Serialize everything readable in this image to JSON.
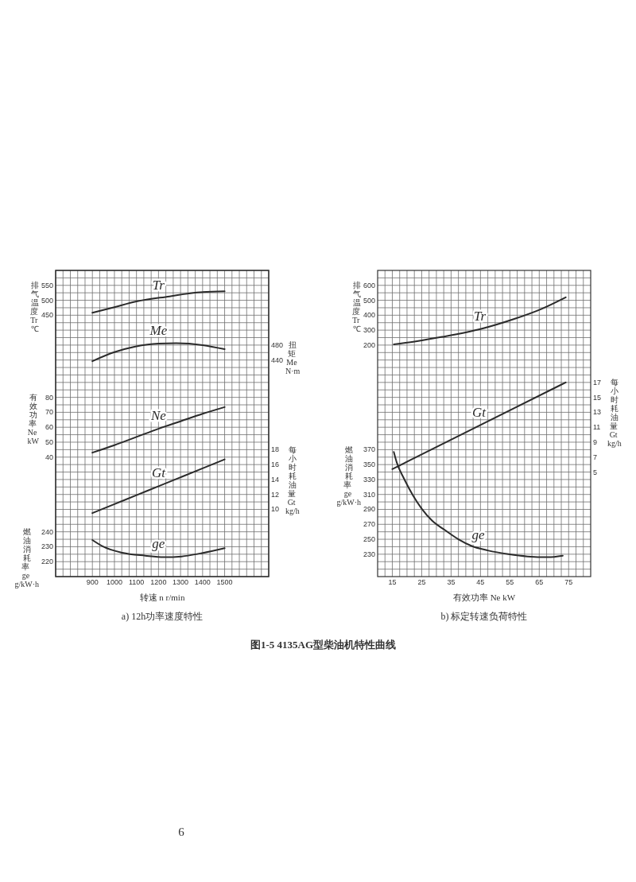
{
  "chart_data": [
    {
      "type": "line",
      "title": "a) 12h功率速度特性",
      "xlabel": "转速 n r/min",
      "ylabel": "燃油消耗率 ge g/kW·h",
      "y2label": "每小时耗油量 Gt kg/h",
      "y3label": "排气温度 Tr ℃",
      "xlim": [
        733.3,
        1700
      ],
      "xticks": [
        {
          "value": 766.7,
          "label": null
        },
        {
          "value": 800,
          "label": null
        },
        {
          "value": 833.3,
          "label": null
        },
        {
          "value": 866.7,
          "label": null
        },
        900,
        {
          "value": 933.3,
          "label": null
        },
        {
          "value": 966.7,
          "label": null
        },
        1000,
        {
          "value": 1033.3,
          "label": null
        },
        {
          "value": 1066.7,
          "label": null
        },
        1100,
        {
          "value": 1133.3,
          "label": null
        },
        {
          "value": 1166.7,
          "label": null
        },
        1200,
        {
          "value": 1233.3,
          "label": null
        },
        {
          "value": 1266.7,
          "label": null
        },
        1300,
        {
          "value": 1333.3,
          "label": null
        },
        {
          "value": 1366.7,
          "label": null
        },
        1400,
        {
          "value": 1433.3,
          "label": null
        },
        {
          "value": 1466.7,
          "label": null
        },
        1500,
        {
          "value": 1533.3,
          "label": null
        },
        {
          "value": 1566.7,
          "label": null
        },
        {
          "value": 1600,
          "label": null
        },
        {
          "value": 1633.3,
          "label": null
        },
        {
          "value": 1666.7,
          "label": null
        }
      ],
      "ylim": [
        210,
        415
      ],
      "yticks": [
        {
          "value": 215,
          "label": null
        },
        220,
        {
          "value": 225,
          "label": null
        },
        230,
        {
          "value": 235,
          "label": null
        },
        240,
        {
          "value": 245,
          "label": null
        },
        {
          "value": 250,
          "label": null
        },
        {
          "value": 255,
          "label": null
        },
        {
          "value": 260,
          "label": null
        },
        {
          "value": 265,
          "label": null
        },
        {
          "value": 270,
          "label": null
        },
        {
          "value": 275,
          "label": null
        },
        {
          "value": 280,
          "label": null
        },
        {
          "value": 285,
          "label": null
        },
        {
          "value": 290,
          "label": null
        },
        {
          "value": 295,
          "label": null
        },
        {
          "value": 300,
          "label": null
        },
        {
          "value": 305,
          "label": null
        },
        {
          "value": 310,
          "label": null
        },
        {
          "value": 315,
          "label": null
        },
        {
          "value": 320,
          "label": null
        },
        {
          "value": 325,
          "label": null
        },
        {
          "value": 330,
          "label": null
        },
        {
          "value": 335,
          "label": null
        },
        {
          "value": 340,
          "label": null
        },
        {
          "value": 345,
          "label": null
        },
        {
          "value": 350,
          "label": null
        },
        {
          "value": 355,
          "label": null
        },
        {
          "value": 360,
          "label": null
        },
        {
          "value": 365,
          "label": null
        },
        {
          "value": 370,
          "label": null
        },
        {
          "value": 375,
          "label": null
        },
        {
          "value": 380,
          "label": null
        },
        {
          "value": 385,
          "label": null
        },
        {
          "value": 390,
          "label": null
        },
        {
          "value": 395,
          "label": null
        },
        {
          "value": 400,
          "label": null
        },
        {
          "value": 405,
          "label": null
        },
        {
          "value": 410,
          "label": null
        }
      ],
      "y2lim": [
        1,
        42
      ],
      "y2ticks": [
        10,
        12,
        14,
        16,
        18
      ],
      "y3lim": [
        -425,
        600
      ],
      "y3ticks": [
        450,
        500,
        550
      ],
      "grid": true,
      "series": [
        {
          "name": "Tr",
          "axis": "y3",
          "color": "#2b2b2b",
          "x": [
            900,
            1000,
            1100,
            1250,
            1375,
            1500
          ],
          "values": [
            458,
            477,
            496,
            513,
            526,
            530
          ]
        },
        {
          "name": "Gt",
          "axis": "y2",
          "color": "#2b2b2b",
          "x": [
            900,
            1000,
            1100,
            1200,
            1300,
            1400,
            1500
          ],
          "values": [
            9.5,
            10.7,
            11.9,
            13.1,
            14.3,
            15.5,
            16.7
          ]
        },
        {
          "name": "ge",
          "axis": "y",
          "color": "#2b2b2b",
          "x": [
            900,
            950,
            1035,
            1140,
            1225,
            1305,
            1390,
            1500
          ],
          "values": [
            234.5,
            230,
            226,
            224,
            223,
            223.5,
            225.5,
            229
          ]
        }
      ],
      "annotations": [
        "图1-5 4135AG型柴油机特性曲线",
        "6"
      ]
    },
    {
      "type": "line",
      "ylabel": "有效功率 Ne kW",
      "y2label": "扭矩 Me N·m",
      "xlim": [
        733.3,
        1700
      ],
      "ylim": [
        -40,
        165
      ],
      "yticks": [
        40,
        50,
        60,
        70,
        80
      ],
      "y2lim": [
        -140,
        680
      ],
      "y2ticks": [
        440,
        480
      ],
      "tick_labels": "y",
      "series": [
        {
          "name": "Me",
          "axis": "y2",
          "color": "#2b2b2b",
          "x": [
            900,
            1000,
            1095,
            1200,
            1280,
            1400,
            1500
          ],
          "values": [
            437,
            461,
            476,
            484,
            485,
            480,
            469
          ]
        },
        {
          "name": "Ne",
          "axis": "y",
          "color": "#2b2b2b",
          "x": [
            900,
            1000,
            1100,
            1200,
            1300,
            1400,
            1500
          ],
          "values": [
            43,
            48,
            53.5,
            59,
            64,
            69,
            73.5
          ]
        }
      ]
    },
    {
      "type": "line",
      "title": "b) 标定转速负荷特性",
      "xlabel": "有效功率 Ne kW",
      "ylabel": "燃油消耗率 ge g/kW·h",
      "y2label": "每小时耗油量 Gt kg/h",
      "y3label": "排气温度 Tr ℃",
      "xlim": [
        10,
        82.5
      ],
      "xticks": [
        {
          "value": 12.5,
          "label": null
        },
        15,
        {
          "value": 17.5,
          "label": null
        },
        {
          "value": 20,
          "label": null
        },
        {
          "value": 22.5,
          "label": null
        },
        25,
        {
          "value": 27.5,
          "label": null
        },
        {
          "value": 30,
          "label": null
        },
        {
          "value": 32.5,
          "label": null
        },
        35,
        {
          "value": 37.5,
          "label": null
        },
        {
          "value": 40,
          "label": null
        },
        {
          "value": 42.5,
          "label": null
        },
        45,
        {
          "value": 47.5,
          "label": null
        },
        {
          "value": 50,
          "label": null
        },
        {
          "value": 52.5,
          "label": null
        },
        55,
        {
          "value": 57.5,
          "label": null
        },
        {
          "value": 60,
          "label": null
        },
        {
          "value": 62.5,
          "label": null
        },
        65,
        {
          "value": 67.5,
          "label": null
        },
        {
          "value": 70,
          "label": null
        },
        {
          "value": 72.5,
          "label": null
        },
        75,
        {
          "value": 77.5,
          "label": null
        },
        {
          "value": 80,
          "label": null
        }
      ],
      "ylim": [
        200,
        610
      ],
      "yticks": [
        {
          "value": 210,
          "label": null
        },
        {
          "value": 220,
          "label": null
        },
        230,
        {
          "value": 240,
          "label": null
        },
        250,
        {
          "value": 260,
          "label": null
        },
        270,
        {
          "value": 280,
          "label": null
        },
        290,
        {
          "value": 300,
          "label": null
        },
        310,
        {
          "value": 320,
          "label": null
        },
        330,
        {
          "value": 340,
          "label": null
        },
        350,
        {
          "value": 360,
          "label": null
        },
        370,
        {
          "value": 380,
          "label": null
        },
        {
          "value": 390,
          "label": null
        },
        {
          "value": 400,
          "label": null
        },
        {
          "value": 410,
          "label": null
        },
        {
          "value": 420,
          "label": null
        },
        {
          "value": 430,
          "label": null
        },
        {
          "value": 440,
          "label": null
        },
        {
          "value": 450,
          "label": null
        },
        {
          "value": 460,
          "label": null
        },
        {
          "value": 470,
          "label": null
        },
        {
          "value": 480,
          "label": null
        },
        {
          "value": 490,
          "label": null
        },
        {
          "value": 500,
          "label": null
        },
        {
          "value": 510,
          "label": null
        },
        {
          "value": 520,
          "label": null
        },
        {
          "value": 530,
          "label": null
        },
        {
          "value": 540,
          "label": null
        },
        {
          "value": 550,
          "label": null
        },
        {
          "value": 560,
          "label": null
        },
        {
          "value": 570,
          "label": null
        },
        {
          "value": 580,
          "label": null
        },
        {
          "value": 590,
          "label": null
        },
        {
          "value": 600,
          "label": null
        }
      ],
      "y2lim": [
        -9,
        32
      ],
      "y2ticks": [
        5,
        7,
        9,
        11,
        13,
        15,
        17
      ],
      "y3lim": [
        -1350,
        700
      ],
      "y3ticks": [
        200,
        300,
        400,
        500,
        600
      ],
      "grid": true,
      "series": [
        {
          "name": "Tr",
          "axis": "y3",
          "color": "#2b2b2b",
          "x": [
            15.5,
            23,
            32,
            45.5,
            56.5,
            65.5,
            74
          ],
          "values": [
            205,
            225,
            255,
            310,
            375,
            440,
            520
          ]
        },
        {
          "name": "Gt",
          "axis": "y2",
          "color": "#2b2b2b",
          "x": [
            15,
            45,
            74
          ],
          "values": [
            5.4,
            11.3,
            17
          ]
        },
        {
          "name": "ge",
          "axis": "y",
          "color": "#2b2b2b",
          "x": [
            15.5,
            16.5,
            19,
            22,
            25,
            28.5,
            33,
            37.5,
            42,
            47.5,
            54.5,
            61,
            68,
            73
          ],
          "values": [
            367,
            353,
            331,
            309,
            291,
            275,
            262,
            250,
            241,
            235,
            230,
            227,
            226,
            228
          ]
        }
      ]
    }
  ]
}
